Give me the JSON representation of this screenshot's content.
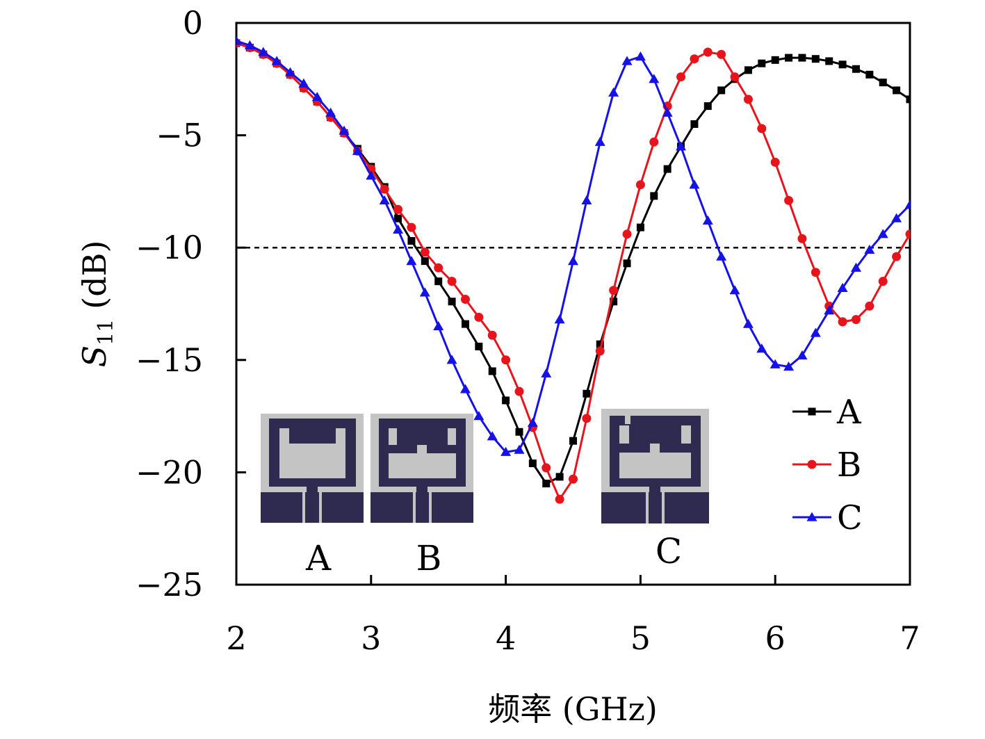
{
  "chart_data": {
    "type": "line",
    "title": "",
    "xlabel": "频率 (GHz)",
    "ylabel": {
      "symbol": "S",
      "subscript": "11",
      "unit": "(dB)"
    },
    "xlim": [
      2,
      7
    ],
    "ylim": [
      -25,
      0
    ],
    "xticks": [
      "2",
      "3",
      "4",
      "5",
      "6",
      "7"
    ],
    "yticks": [
      "0",
      "−5",
      "−10",
      "−15",
      "−20",
      "−25"
    ],
    "reference_line": {
      "y": -10,
      "style": "dashed"
    },
    "grid": false,
    "legend_position": "bottom-right",
    "series": [
      {
        "name": "A",
        "color": "#000000",
        "marker": "square",
        "x": [
          2.0,
          2.1,
          2.2,
          2.3,
          2.4,
          2.5,
          2.6,
          2.7,
          2.8,
          2.9,
          3.0,
          3.1,
          3.2,
          3.3,
          3.4,
          3.5,
          3.6,
          3.7,
          3.8,
          3.9,
          4.0,
          4.1,
          4.2,
          4.3,
          4.4,
          4.5,
          4.6,
          4.7,
          4.8,
          4.9,
          5.0,
          5.1,
          5.2,
          5.3,
          5.4,
          5.5,
          5.6,
          5.7,
          5.8,
          5.9,
          6.0,
          6.1,
          6.2,
          6.3,
          6.4,
          6.5,
          6.6,
          6.7,
          6.8,
          6.9,
          7.0
        ],
        "y": [
          -0.9,
          -1.1,
          -1.4,
          -1.8,
          -2.3,
          -2.9,
          -3.5,
          -4.2,
          -4.9,
          -5.6,
          -6.4,
          -7.3,
          -8.7,
          -9.7,
          -10.6,
          -11.5,
          -12.4,
          -13.4,
          -14.4,
          -15.5,
          -16.8,
          -18.2,
          -19.6,
          -20.5,
          -20.2,
          -18.6,
          -16.5,
          -14.3,
          -12.4,
          -10.7,
          -9.1,
          -7.7,
          -6.5,
          -5.5,
          -4.5,
          -3.7,
          -3.0,
          -2.5,
          -2.1,
          -1.8,
          -1.65,
          -1.55,
          -1.55,
          -1.6,
          -1.7,
          -1.85,
          -2.05,
          -2.3,
          -2.65,
          -3.0,
          -3.4
        ]
      },
      {
        "name": "B",
        "color": "#e8141c",
        "marker": "circle",
        "x": [
          2.0,
          2.1,
          2.2,
          2.3,
          2.4,
          2.5,
          2.6,
          2.7,
          2.8,
          2.9,
          3.0,
          3.1,
          3.2,
          3.3,
          3.4,
          3.5,
          3.6,
          3.7,
          3.8,
          3.9,
          4.0,
          4.1,
          4.2,
          4.3,
          4.4,
          4.5,
          4.6,
          4.7,
          4.8,
          4.9,
          5.0,
          5.1,
          5.2,
          5.3,
          5.4,
          5.5,
          5.6,
          5.7,
          5.8,
          5.9,
          6.0,
          6.1,
          6.2,
          6.3,
          6.4,
          6.5,
          6.6,
          6.7,
          6.8,
          6.9,
          7.0
        ],
        "y": [
          -0.9,
          -1.1,
          -1.4,
          -1.8,
          -2.3,
          -2.9,
          -3.5,
          -4.2,
          -4.9,
          -5.7,
          -6.5,
          -7.4,
          -8.3,
          -9.1,
          -10.2,
          -10.9,
          -11.5,
          -12.3,
          -13.1,
          -13.9,
          -15.0,
          -16.4,
          -18.0,
          -19.8,
          -21.2,
          -20.3,
          -17.6,
          -14.6,
          -11.9,
          -9.4,
          -7.2,
          -5.3,
          -3.7,
          -2.4,
          -1.6,
          -1.3,
          -1.4,
          -2.4,
          -3.4,
          -4.7,
          -6.2,
          -7.9,
          -9.6,
          -11.1,
          -12.6,
          -13.3,
          -13.2,
          -12.6,
          -11.5,
          -10.4,
          -9.4
        ]
      },
      {
        "name": "C",
        "color": "#1412e8",
        "marker": "triangle",
        "x": [
          2.0,
          2.1,
          2.2,
          2.3,
          2.4,
          2.5,
          2.6,
          2.7,
          2.8,
          2.9,
          3.0,
          3.1,
          3.2,
          3.3,
          3.4,
          3.5,
          3.6,
          3.7,
          3.8,
          3.9,
          4.0,
          4.1,
          4.2,
          4.3,
          4.4,
          4.5,
          4.6,
          4.7,
          4.8,
          4.9,
          5.0,
          5.1,
          5.2,
          5.3,
          5.4,
          5.5,
          5.6,
          5.7,
          5.8,
          5.9,
          6.0,
          6.1,
          6.2,
          6.3,
          6.4,
          6.5,
          6.6,
          6.7,
          6.8,
          6.9,
          7.0
        ],
        "y": [
          -0.8,
          -1.0,
          -1.3,
          -1.7,
          -2.2,
          -2.7,
          -3.3,
          -4.0,
          -4.8,
          -5.7,
          -6.8,
          -7.9,
          -9.2,
          -10.6,
          -12.0,
          -13.5,
          -15.0,
          -16.3,
          -17.5,
          -18.4,
          -19.1,
          -19.0,
          -17.8,
          -15.6,
          -13.2,
          -10.6,
          -7.9,
          -5.3,
          -3.1,
          -1.7,
          -1.5,
          -2.5,
          -4.0,
          -5.5,
          -7.2,
          -8.8,
          -10.4,
          -11.9,
          -13.4,
          -14.5,
          -15.2,
          -15.3,
          -14.8,
          -13.8,
          -12.8,
          -11.8,
          -10.9,
          -10.1,
          -9.4,
          -8.7,
          -8.1
        ]
      }
    ]
  },
  "insets": [
    {
      "label": "A"
    },
    {
      "label": "B"
    },
    {
      "label": "C"
    }
  ]
}
